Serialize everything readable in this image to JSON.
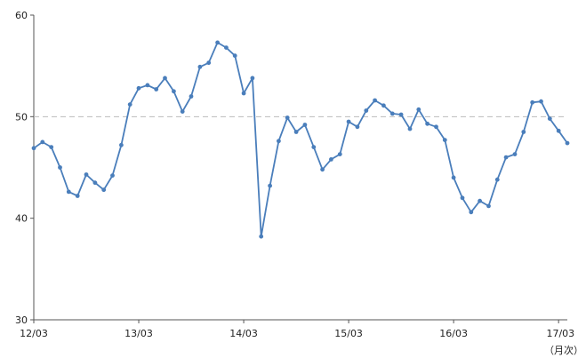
{
  "chart_data": {
    "type": "line",
    "title": "",
    "xlabel": "",
    "ylabel": "",
    "x_unit_note": "（月次）",
    "ylim": [
      30,
      60
    ],
    "y_ticks": [
      30,
      40,
      50,
      60
    ],
    "x_tick_labels": [
      "12/03",
      "13/03",
      "14/03",
      "15/03",
      "16/03",
      "17/03"
    ],
    "reference_line": {
      "y": 50,
      "style": "dashed",
      "color": "#bbbbbb"
    },
    "grid": false,
    "legend": "none",
    "x_start": "2012-03",
    "x_end": "2017-03",
    "series": [
      {
        "color": "#4a7ebb",
        "values": [
          46.9,
          47.5,
          47.0,
          45.0,
          42.6,
          42.2,
          44.3,
          43.5,
          42.8,
          44.2,
          47.2,
          51.2,
          52.8,
          53.1,
          52.7,
          53.8,
          52.5,
          50.5,
          52.0,
          54.9,
          55.3,
          57.3,
          56.8,
          56.0,
          52.3,
          53.8,
          38.2,
          43.2,
          47.6,
          49.9,
          48.5,
          49.2,
          47.0,
          44.8,
          45.8,
          46.3,
          49.5,
          49.0,
          50.6,
          51.6,
          51.1,
          50.3,
          50.2,
          48.8,
          50.7,
          49.3,
          49.0,
          47.7,
          44.0,
          42.0,
          40.6,
          41.7,
          41.2,
          43.8,
          46.0,
          46.3,
          48.5,
          51.4,
          51.5,
          49.8,
          48.6,
          47.4
        ]
      }
    ]
  }
}
